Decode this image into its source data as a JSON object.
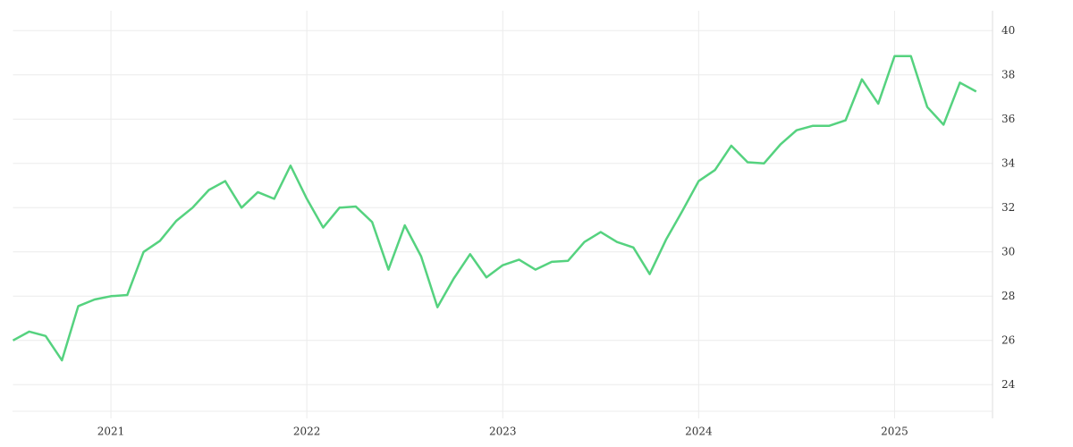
{
  "chart_data": {
    "type": "line",
    "x": [
      2020.5,
      2020.5833,
      2020.6667,
      2020.75,
      2020.8333,
      2020.9167,
      2021,
      2021.0833,
      2021.1667,
      2021.25,
      2021.3333,
      2021.4167,
      2021.5,
      2021.5833,
      2021.6667,
      2021.75,
      2021.8333,
      2021.9167,
      2022,
      2022.0833,
      2022.1667,
      2022.25,
      2022.3333,
      2022.4167,
      2022.5,
      2022.5833,
      2022.6667,
      2022.75,
      2022.8333,
      2022.9167,
      2023,
      2023.0833,
      2023.1667,
      2023.25,
      2023.3333,
      2023.4167,
      2023.5,
      2023.5833,
      2023.6667,
      2023.75,
      2023.8333,
      2023.9167,
      2024,
      2024.0833,
      2024.1667,
      2024.25,
      2024.3333,
      2024.4167,
      2024.5,
      2024.5833,
      2024.6667,
      2024.75,
      2024.8333,
      2024.9167,
      2025,
      2025.0833,
      2025.1667,
      2025.25,
      2025.3333,
      2025.4167
    ],
    "series": [
      {
        "color": "#55d27f",
        "values": [
          26.0,
          26.4,
          26.2,
          25.1,
          27.55,
          27.85,
          28.0,
          28.05,
          30.0,
          30.5,
          31.4,
          32.0,
          32.8,
          33.2,
          32.0,
          32.7,
          32.4,
          33.9,
          32.4,
          31.1,
          32.0,
          32.05,
          31.35,
          29.2,
          31.2,
          29.8,
          27.5,
          28.8,
          29.9,
          28.85,
          29.4,
          29.65,
          29.2,
          29.55,
          29.6,
          30.45,
          30.9,
          30.45,
          30.2,
          29.0,
          30.55,
          31.85,
          33.2,
          33.7,
          34.8,
          34.05,
          34.0,
          34.85,
          35.5,
          35.7,
          35.7,
          35.95,
          37.8,
          36.7,
          38.85,
          38.85,
          36.55,
          35.75,
          37.65,
          37.25
        ]
      }
    ],
    "xlim": [
      2020.5,
      2025.5
    ],
    "xticks": [
      2021,
      2022,
      2023,
      2024,
      2025
    ],
    "ylim": [
      22.8,
      40.9
    ],
    "yticks": [
      24,
      26,
      28,
      30,
      32,
      34,
      36,
      38,
      40
    ],
    "grid": true,
    "y_axis_side": "right"
  }
}
